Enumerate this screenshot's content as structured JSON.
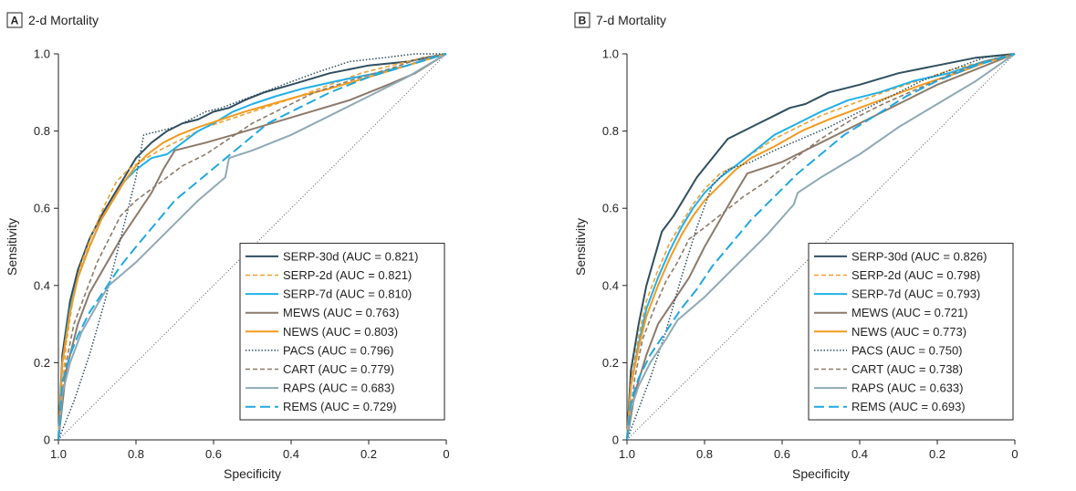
{
  "colors": {
    "SERP-30d": "#2f4f5f",
    "SERP-2d": "#f0a030",
    "SERP-7d": "#20b0e8",
    "MEWS": "#8c7a6a",
    "NEWS": "#f39a1e",
    "PACS": "#2f4f5f",
    "CART": "#8c7a6a",
    "RAPS": "#8fa9b6",
    "REMS": "#20a8e0",
    "reference": "#555555"
  },
  "chart_data": [
    {
      "type": "line",
      "panel_letter": "A",
      "title": "2-d Mortality",
      "xlabel": "Specificity",
      "ylabel": "Sensitivity",
      "xlim": [
        1.0,
        0
      ],
      "ylim": [
        0,
        1.0
      ],
      "x_reversed": true,
      "x_ticks": [
        "1.0",
        "0.8",
        "0.6",
        "0.4",
        "0.2",
        "0"
      ],
      "y_ticks": [
        "0",
        "0.2",
        "0.4",
        "0.6",
        "0.8",
        "1.0"
      ],
      "grid": false,
      "reference_line": true,
      "legend_position": "bottom-right",
      "series": [
        {
          "name": "SERP-30d",
          "label": "SERP-30d (AUC = 0.821)",
          "style": "solid",
          "x": [
            1.0,
            0.99,
            0.97,
            0.95,
            0.92,
            0.89,
            0.86,
            0.83,
            0.8,
            0.76,
            0.72,
            0.68,
            0.64,
            0.6,
            0.56,
            0.52,
            0.47,
            0.4,
            0.3,
            0.2,
            0.1,
            0.05,
            0
          ],
          "y": [
            0,
            0.22,
            0.36,
            0.44,
            0.52,
            0.58,
            0.63,
            0.68,
            0.73,
            0.77,
            0.8,
            0.82,
            0.83,
            0.85,
            0.86,
            0.88,
            0.9,
            0.92,
            0.95,
            0.97,
            0.98,
            0.99,
            1.0
          ]
        },
        {
          "name": "SERP-2d",
          "label": "SERP-2d (AUC = 0.821)",
          "style": "dashed",
          "x": [
            1.0,
            0.98,
            0.96,
            0.94,
            0.91,
            0.88,
            0.85,
            0.82,
            0.79,
            0.74,
            0.68,
            0.62,
            0.56,
            0.5,
            0.44,
            0.38,
            0.3,
            0.22,
            0.14,
            0.06,
            0
          ],
          "y": [
            0,
            0.25,
            0.38,
            0.46,
            0.54,
            0.61,
            0.67,
            0.7,
            0.72,
            0.75,
            0.78,
            0.81,
            0.83,
            0.85,
            0.87,
            0.89,
            0.92,
            0.95,
            0.97,
            0.99,
            1.0
          ]
        },
        {
          "name": "SERP-7d",
          "label": "SERP-7d (AUC = 0.810)",
          "style": "solid",
          "x": [
            1.0,
            0.99,
            0.97,
            0.95,
            0.92,
            0.89,
            0.86,
            0.83,
            0.8,
            0.76,
            0.72,
            0.68,
            0.64,
            0.6,
            0.55,
            0.5,
            0.44,
            0.37,
            0.28,
            0.18,
            0.1,
            0.04,
            0
          ],
          "y": [
            0,
            0.2,
            0.34,
            0.42,
            0.5,
            0.57,
            0.62,
            0.67,
            0.7,
            0.73,
            0.74,
            0.77,
            0.8,
            0.82,
            0.85,
            0.87,
            0.89,
            0.91,
            0.93,
            0.95,
            0.97,
            0.99,
            1.0
          ]
        },
        {
          "name": "MEWS",
          "label": "MEWS (AUC = 0.763)",
          "style": "solid",
          "x": [
            1.0,
            0.98,
            0.95,
            0.92,
            0.88,
            0.84,
            0.8,
            0.76,
            0.73,
            0.7,
            0.62,
            0.55,
            0.45,
            0.35,
            0.25,
            0.15,
            0.08,
            0
          ],
          "y": [
            0,
            0.18,
            0.3,
            0.38,
            0.45,
            0.52,
            0.58,
            0.64,
            0.7,
            0.75,
            0.77,
            0.79,
            0.82,
            0.85,
            0.88,
            0.92,
            0.95,
            1.0
          ]
        },
        {
          "name": "NEWS",
          "label": "NEWS (AUC = 0.803)",
          "style": "solid",
          "x": [
            1.0,
            0.99,
            0.97,
            0.95,
            0.92,
            0.89,
            0.86,
            0.83,
            0.8,
            0.77,
            0.73,
            0.69,
            0.64,
            0.58,
            0.52,
            0.45,
            0.38,
            0.3,
            0.2,
            0.1,
            0
          ],
          "y": [
            0,
            0.2,
            0.33,
            0.42,
            0.5,
            0.57,
            0.62,
            0.67,
            0.71,
            0.74,
            0.77,
            0.79,
            0.81,
            0.83,
            0.85,
            0.87,
            0.89,
            0.91,
            0.94,
            0.97,
            1.0
          ]
        },
        {
          "name": "PACS",
          "label": "PACS (AUC = 0.796)",
          "style": "dotted",
          "x": [
            1.0,
            0.96,
            0.92,
            0.88,
            0.84,
            0.8,
            0.78,
            0.74,
            0.7,
            0.66,
            0.62,
            0.58,
            0.5,
            0.42,
            0.34,
            0.25,
            0.16,
            0.08,
            0
          ],
          "y": [
            0,
            0.1,
            0.22,
            0.36,
            0.52,
            0.68,
            0.79,
            0.8,
            0.81,
            0.83,
            0.85,
            0.86,
            0.89,
            0.92,
            0.95,
            0.98,
            0.99,
            1.0,
            1.0
          ]
        },
        {
          "name": "CART",
          "label": "CART (AUC = 0.779)",
          "style": "dashed",
          "x": [
            1.0,
            0.98,
            0.96,
            0.93,
            0.9,
            0.87,
            0.84,
            0.8,
            0.76,
            0.72,
            0.68,
            0.62,
            0.56,
            0.5,
            0.42,
            0.34,
            0.25,
            0.15,
            0.06,
            0
          ],
          "y": [
            0,
            0.2,
            0.3,
            0.38,
            0.46,
            0.52,
            0.58,
            0.62,
            0.65,
            0.68,
            0.71,
            0.74,
            0.78,
            0.82,
            0.86,
            0.9,
            0.93,
            0.96,
            0.99,
            1.0
          ]
        },
        {
          "name": "RAPS",
          "label": "RAPS (AUC = 0.683)",
          "style": "solid",
          "x": [
            1.0,
            0.99,
            0.97,
            0.94,
            0.9,
            0.87,
            0.8,
            0.72,
            0.64,
            0.57,
            0.56,
            0.5,
            0.4,
            0.3,
            0.2,
            0.1,
            0
          ],
          "y": [
            0,
            0.12,
            0.2,
            0.28,
            0.35,
            0.4,
            0.46,
            0.54,
            0.62,
            0.68,
            0.73,
            0.75,
            0.79,
            0.84,
            0.89,
            0.94,
            1.0
          ]
        },
        {
          "name": "REMS",
          "label": "REMS (AUC = 0.729)",
          "style": "longdash",
          "x": [
            1.0,
            0.99,
            0.97,
            0.95,
            0.92,
            0.88,
            0.84,
            0.8,
            0.75,
            0.7,
            0.64,
            0.58,
            0.52,
            0.46,
            0.38,
            0.3,
            0.2,
            0.1,
            0
          ],
          "y": [
            0,
            0.15,
            0.22,
            0.27,
            0.33,
            0.39,
            0.45,
            0.5,
            0.56,
            0.62,
            0.67,
            0.72,
            0.77,
            0.82,
            0.86,
            0.9,
            0.94,
            0.97,
            1.0
          ]
        }
      ]
    },
    {
      "type": "line",
      "panel_letter": "B",
      "title": "7-d Mortality",
      "xlabel": "Specificity",
      "ylabel": "Sensitivity",
      "xlim": [
        1.0,
        0
      ],
      "ylim": [
        0,
        1.0
      ],
      "x_reversed": true,
      "x_ticks": [
        "1.0",
        "0.8",
        "0.6",
        "0.4",
        "0.2",
        "0"
      ],
      "y_ticks": [
        "0",
        "0.2",
        "0.4",
        "0.6",
        "0.8",
        "1.0"
      ],
      "grid": false,
      "reference_line": true,
      "legend_position": "bottom-right",
      "series": [
        {
          "name": "SERP-30d",
          "label": "SERP-30d (AUC = 0.826)",
          "style": "solid",
          "x": [
            1.0,
            0.99,
            0.97,
            0.95,
            0.93,
            0.91,
            0.88,
            0.85,
            0.82,
            0.78,
            0.74,
            0.7,
            0.66,
            0.62,
            0.58,
            0.54,
            0.48,
            0.4,
            0.3,
            0.2,
            0.1,
            0
          ],
          "y": [
            0,
            0.18,
            0.3,
            0.4,
            0.47,
            0.54,
            0.58,
            0.63,
            0.68,
            0.73,
            0.78,
            0.8,
            0.82,
            0.84,
            0.86,
            0.87,
            0.9,
            0.92,
            0.95,
            0.97,
            0.99,
            1.0
          ]
        },
        {
          "name": "SERP-2d",
          "label": "SERP-2d (AUC = 0.798)",
          "style": "dashed",
          "x": [
            1.0,
            0.99,
            0.97,
            0.95,
            0.92,
            0.89,
            0.86,
            0.83,
            0.8,
            0.76,
            0.72,
            0.68,
            0.62,
            0.56,
            0.5,
            0.42,
            0.34,
            0.25,
            0.16,
            0.08,
            0
          ],
          "y": [
            0,
            0.15,
            0.27,
            0.36,
            0.44,
            0.51,
            0.56,
            0.61,
            0.65,
            0.69,
            0.71,
            0.74,
            0.78,
            0.81,
            0.84,
            0.87,
            0.9,
            0.93,
            0.96,
            0.98,
            1.0
          ]
        },
        {
          "name": "SERP-7d",
          "label": "SERP-7d (AUC = 0.793)",
          "style": "solid",
          "x": [
            1.0,
            0.99,
            0.97,
            0.95,
            0.92,
            0.89,
            0.86,
            0.83,
            0.8,
            0.76,
            0.72,
            0.67,
            0.62,
            0.56,
            0.5,
            0.43,
            0.35,
            0.26,
            0.17,
            0.08,
            0
          ],
          "y": [
            0,
            0.14,
            0.25,
            0.34,
            0.42,
            0.49,
            0.55,
            0.6,
            0.64,
            0.68,
            0.71,
            0.75,
            0.79,
            0.82,
            0.85,
            0.88,
            0.9,
            0.93,
            0.95,
            0.98,
            1.0
          ]
        },
        {
          "name": "MEWS",
          "label": "MEWS (AUC = 0.721)",
          "style": "solid",
          "x": [
            1.0,
            0.98,
            0.95,
            0.92,
            0.88,
            0.84,
            0.8,
            0.76,
            0.72,
            0.69,
            0.6,
            0.5,
            0.4,
            0.3,
            0.2,
            0.1,
            0
          ],
          "y": [
            0,
            0.12,
            0.22,
            0.3,
            0.36,
            0.42,
            0.5,
            0.57,
            0.64,
            0.69,
            0.72,
            0.77,
            0.82,
            0.87,
            0.92,
            0.96,
            1.0
          ]
        },
        {
          "name": "NEWS",
          "label": "NEWS (AUC = 0.773)",
          "style": "solid",
          "x": [
            1.0,
            0.99,
            0.97,
            0.95,
            0.92,
            0.89,
            0.86,
            0.83,
            0.8,
            0.76,
            0.72,
            0.68,
            0.62,
            0.55,
            0.48,
            0.4,
            0.32,
            0.24,
            0.15,
            0.07,
            0
          ],
          "y": [
            0,
            0.14,
            0.24,
            0.32,
            0.4,
            0.47,
            0.53,
            0.58,
            0.62,
            0.66,
            0.7,
            0.73,
            0.76,
            0.8,
            0.83,
            0.86,
            0.89,
            0.92,
            0.95,
            0.98,
            1.0
          ]
        },
        {
          "name": "PACS",
          "label": "PACS (AUC = 0.750)",
          "style": "dotted",
          "x": [
            1.0,
            0.97,
            0.94,
            0.9,
            0.86,
            0.82,
            0.78,
            0.74,
            0.68,
            0.62,
            0.55,
            0.48,
            0.4,
            0.32,
            0.24,
            0.16,
            0.08,
            0
          ],
          "y": [
            0,
            0.08,
            0.16,
            0.28,
            0.42,
            0.55,
            0.66,
            0.7,
            0.72,
            0.75,
            0.78,
            0.81,
            0.85,
            0.89,
            0.93,
            0.96,
            0.99,
            1.0
          ]
        },
        {
          "name": "CART",
          "label": "CART (AUC = 0.738)",
          "style": "dashed",
          "x": [
            1.0,
            0.98,
            0.96,
            0.93,
            0.9,
            0.87,
            0.84,
            0.8,
            0.75,
            0.7,
            0.64,
            0.58,
            0.5,
            0.42,
            0.34,
            0.25,
            0.16,
            0.08,
            0
          ],
          "y": [
            0,
            0.16,
            0.26,
            0.34,
            0.41,
            0.46,
            0.52,
            0.55,
            0.59,
            0.63,
            0.67,
            0.72,
            0.78,
            0.83,
            0.87,
            0.91,
            0.95,
            0.98,
            1.0
          ]
        },
        {
          "name": "RAPS",
          "label": "RAPS (AUC = 0.633)",
          "style": "solid",
          "x": [
            1.0,
            0.99,
            0.97,
            0.94,
            0.9,
            0.87,
            0.8,
            0.72,
            0.64,
            0.57,
            0.56,
            0.5,
            0.4,
            0.3,
            0.2,
            0.1,
            0
          ],
          "y": [
            0,
            0.08,
            0.14,
            0.2,
            0.26,
            0.31,
            0.37,
            0.45,
            0.53,
            0.61,
            0.64,
            0.68,
            0.74,
            0.81,
            0.87,
            0.93,
            1.0
          ]
        },
        {
          "name": "REMS",
          "label": "REMS (AUC = 0.693)",
          "style": "longdash",
          "x": [
            1.0,
            0.99,
            0.97,
            0.94,
            0.9,
            0.86,
            0.82,
            0.78,
            0.73,
            0.68,
            0.62,
            0.56,
            0.5,
            0.44,
            0.36,
            0.28,
            0.2,
            0.1,
            0
          ],
          "y": [
            0,
            0.1,
            0.16,
            0.22,
            0.28,
            0.34,
            0.39,
            0.45,
            0.51,
            0.57,
            0.63,
            0.69,
            0.74,
            0.79,
            0.84,
            0.89,
            0.93,
            0.97,
            1.0
          ]
        }
      ]
    }
  ]
}
